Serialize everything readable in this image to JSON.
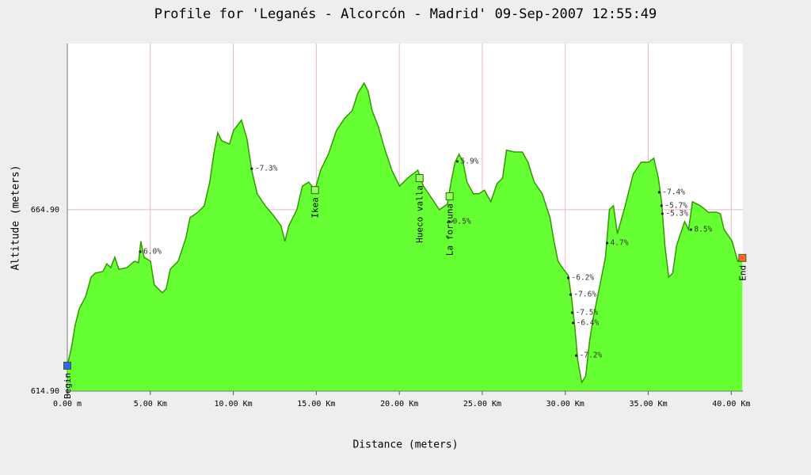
{
  "chart_data": {
    "type": "area",
    "title": "Profile for 'Leganés - Alcorcón - Madrid' 09-Sep-2007 12:55:49",
    "xlabel": "Distance (meters)",
    "ylabel": "Altitude (meters)",
    "xlim": [
      0,
      40.7
    ],
    "ylim": [
      614.9,
      710.7
    ],
    "xticks": [
      {
        "value": 0,
        "label": "0.00 m"
      },
      {
        "value": 5,
        "label": "5.00 Km"
      },
      {
        "value": 10,
        "label": "10.00 Km"
      },
      {
        "value": 15,
        "label": "15.00 Km"
      },
      {
        "value": 20,
        "label": "20.00 Km"
      },
      {
        "value": 25,
        "label": "25.00 Km"
      },
      {
        "value": 30,
        "label": "30.00 Km"
      },
      {
        "value": 35,
        "label": "35.00 Km"
      },
      {
        "value": 40,
        "label": "40.00 Km"
      }
    ],
    "yticks": [
      {
        "value": 614.9,
        "label": "614.90"
      },
      {
        "value": 664.9,
        "label": "664.90"
      }
    ],
    "grid": true,
    "fill_color": "#66ff33",
    "line_color": "#339900",
    "x": [
      0,
      0.24,
      0.48,
      0.72,
      1.1,
      1.43,
      1.67,
      2.15,
      2.38,
      2.62,
      2.86,
      3.1,
      3.58,
      4.05,
      4.29,
      4.43,
      4.62,
      5.01,
      5.24,
      5.72,
      5.96,
      6.2,
      6.68,
      7.15,
      7.39,
      7.87,
      8.25,
      8.58,
      8.82,
      9.06,
      9.3,
      9.77,
      10.01,
      10.49,
      10.82,
      11.11,
      11.44,
      11.92,
      12.4,
      12.87,
      13.11,
      13.35,
      13.83,
      14.16,
      14.54,
      14.92,
      15.26,
      15.73,
      16.21,
      16.69,
      17.16,
      17.5,
      17.88,
      18.12,
      18.36,
      18.74,
      19.07,
      19.55,
      20.02,
      20.5,
      21.12,
      21.45,
      21.93,
      22.41,
      22.89,
      23.12,
      23.36,
      23.6,
      23.84,
      24.08,
      24.46,
      24.79,
      25.13,
      25.51,
      25.89,
      26.22,
      26.46,
      26.94,
      27.41,
      27.75,
      28.13,
      28.61,
      29.08,
      29.32,
      29.56,
      29.89,
      30.18,
      30.37,
      30.56,
      30.75,
      30.99,
      31.23,
      31.47,
      31.7,
      32.09,
      32.42,
      32.66,
      32.9,
      33.14,
      33.61,
      34.09,
      34.57,
      35.04,
      35.33,
      35.61,
      35.8,
      36.0,
      36.23,
      36.47,
      36.71,
      37.19,
      37.43,
      37.66,
      38.14,
      38.62,
      39.1,
      39.34,
      39.57,
      40.05,
      40.39,
      40.67
    ],
    "values": [
      621.9,
      626.7,
      633.2,
      637.6,
      640.9,
      646.3,
      647.4,
      647.9,
      650.0,
      648.9,
      651.8,
      648.5,
      648.9,
      650.7,
      650.3,
      656.2,
      651.8,
      650.7,
      644.2,
      642.0,
      643.1,
      648.5,
      650.7,
      657.2,
      662.7,
      664.2,
      666.0,
      672.5,
      680.2,
      686.1,
      683.9,
      683.0,
      686.7,
      689.6,
      684.5,
      675.8,
      669.3,
      666.0,
      663.4,
      660.5,
      656.2,
      660.5,
      664.9,
      671.4,
      672.5,
      670.3,
      675.8,
      680.2,
      686.7,
      690.0,
      692.2,
      697.0,
      699.8,
      697.6,
      692.2,
      687.8,
      682.4,
      675.8,
      671.4,
      673.6,
      675.8,
      671.4,
      668.2,
      664.9,
      666.4,
      672.5,
      678.0,
      680.2,
      678.0,
      672.5,
      669.3,
      669.3,
      670.3,
      667.1,
      672.1,
      673.6,
      681.3,
      680.8,
      680.8,
      678.0,
      672.5,
      669.3,
      662.7,
      656.2,
      650.7,
      648.5,
      646.8,
      640.9,
      633.2,
      623.4,
      617.3,
      619.0,
      628.9,
      635.4,
      644.2,
      651.8,
      664.9,
      666.0,
      658.3,
      666.0,
      674.7,
      678.0,
      678.0,
      679.1,
      673.6,
      667.1,
      655.1,
      646.3,
      647.4,
      655.1,
      661.6,
      659.4,
      667.1,
      666.0,
      664.2,
      664.2,
      663.8,
      659.4,
      656.2,
      650.7,
      651.8
    ],
    "annotations": [
      {
        "x": 4.39,
        "y": 653.3,
        "label": "6.0%"
      },
      {
        "x": 11.11,
        "y": 676.2,
        "label": "-7.3%"
      },
      {
        "x": 23.5,
        "y": 678.2,
        "label": "5.9%"
      },
      {
        "x": 23.03,
        "y": 661.6,
        "label": "0.5%"
      },
      {
        "x": 30.18,
        "y": 646.1,
        "label": "-6.2%"
      },
      {
        "x": 30.32,
        "y": 641.5,
        "label": "-7.6%"
      },
      {
        "x": 30.42,
        "y": 636.5,
        "label": "-7.5%"
      },
      {
        "x": 30.47,
        "y": 633.7,
        "label": "-6.4%"
      },
      {
        "x": 30.66,
        "y": 624.7,
        "label": "-7.2%"
      },
      {
        "x": 32.52,
        "y": 655.7,
        "label": "4.7%"
      },
      {
        "x": 35.66,
        "y": 669.7,
        "label": "-7.4%"
      },
      {
        "x": 35.8,
        "y": 666.0,
        "label": "-5.7%"
      },
      {
        "x": 35.85,
        "y": 663.8,
        "label": "-5.3%"
      },
      {
        "x": 37.57,
        "y": 659.4,
        "label": "8.5%"
      }
    ],
    "waypoints": [
      {
        "x": 0,
        "y": 621.9,
        "label": "Begin",
        "color": "#3366ff"
      },
      {
        "x": 14.92,
        "y": 670.3,
        "label": "Ikea",
        "color": "#99ff66"
      },
      {
        "x": 21.22,
        "y": 673.6,
        "label": "Hueco valla",
        "color": "#99ff66"
      },
      {
        "x": 23.03,
        "y": 668.6,
        "label": "La fortuna",
        "color": "#99ff66"
      },
      {
        "x": 40.67,
        "y": 651.6,
        "label": "End",
        "color": "#ff6633"
      }
    ]
  }
}
